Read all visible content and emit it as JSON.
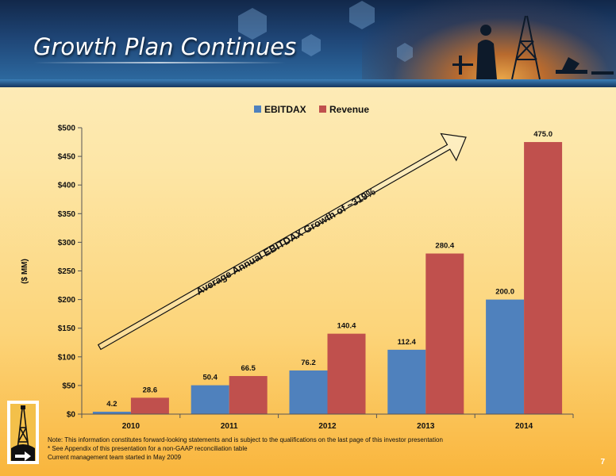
{
  "slide": {
    "title": "Growth Plan Continues",
    "page_number": "7"
  },
  "annotation": {
    "text": "Average Annual EBITDAX Growth of ~319%"
  },
  "footnotes": [
    "Note: This information constitutes forward-looking statements and is subject to the qualifications on the last page of this investor presentation",
    "* See Appendix of this presentation for a non-GAAP reconciliation table",
    "Current management team started in May 2009"
  ],
  "colors": {
    "ebitdax": "#4f81bd",
    "revenue": "#c0504d"
  },
  "icons": [
    "oil-derrick-logo",
    "oil-rig-photo-header"
  ],
  "chart_data": {
    "type": "bar",
    "categories": [
      "2010",
      "2011",
      "2012",
      "2013",
      "2014"
    ],
    "series": [
      {
        "name": "EBITDAX",
        "values": [
          4.2,
          50.4,
          76.2,
          112.4,
          200.0
        ],
        "labels": [
          "4.2",
          "50.4",
          "76.2",
          "112.4",
          "200.0"
        ]
      },
      {
        "name": "Revenue",
        "values": [
          28.6,
          66.5,
          140.4,
          280.4,
          475.0
        ],
        "labels": [
          "28.6",
          "66.5",
          "140.4",
          "280.4",
          "475.0"
        ]
      }
    ],
    "ylabel": "($ MM)",
    "ylim": [
      0,
      500
    ],
    "yticks": [
      0,
      50,
      100,
      150,
      200,
      250,
      300,
      350,
      400,
      450,
      500
    ],
    "ytick_labels": [
      "$0",
      "$50",
      "$100",
      "$150",
      "$200",
      "$250",
      "$300",
      "$350",
      "$400",
      "$450",
      "$500"
    ],
    "legend": "top-center",
    "grid": false
  }
}
